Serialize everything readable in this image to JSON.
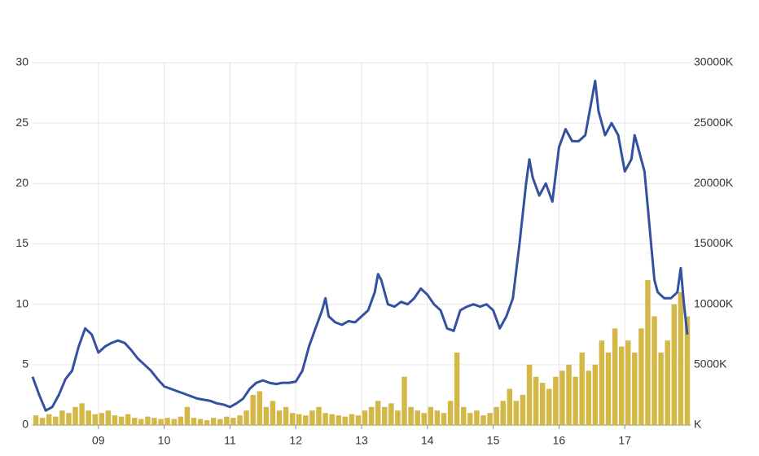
{
  "chart_data": {
    "type": "line",
    "xlim": [
      8,
      18
    ],
    "xticks": [
      {
        "value": 9,
        "label": "09"
      },
      {
        "value": 10,
        "label": "10"
      },
      {
        "value": 11,
        "label": "11"
      },
      {
        "value": 12,
        "label": "12"
      },
      {
        "value": 13,
        "label": "13"
      },
      {
        "value": 14,
        "label": "14"
      },
      {
        "value": 15,
        "label": "15"
      },
      {
        "value": 16,
        "label": "16"
      },
      {
        "value": 17,
        "label": "17"
      }
    ],
    "ylim": [
      0,
      30
    ],
    "yticks": [
      0,
      5,
      10,
      15,
      20,
      25,
      30
    ],
    "y2lim": [
      0,
      30000
    ],
    "y2ticks": [
      {
        "value": 0,
        "label": "K"
      },
      {
        "value": 5000,
        "label": "5000K"
      },
      {
        "value": 10000,
        "label": "10000K"
      },
      {
        "value": 15000,
        "label": "15000K"
      },
      {
        "value": 20000,
        "label": "20000K"
      },
      {
        "value": 25000,
        "label": "25000K"
      },
      {
        "value": 30000,
        "label": "30000K"
      }
    ],
    "grid": true,
    "series": [
      {
        "type": "bar",
        "axis": "y2",
        "color": "#d4b847",
        "x": [
          8.05,
          8.15,
          8.25,
          8.35,
          8.45,
          8.55,
          8.65,
          8.75,
          8.85,
          8.95,
          9.05,
          9.15,
          9.25,
          9.35,
          9.45,
          9.55,
          9.65,
          9.75,
          9.85,
          9.95,
          10.05,
          10.15,
          10.25,
          10.35,
          10.45,
          10.55,
          10.65,
          10.75,
          10.85,
          10.95,
          11.05,
          11.15,
          11.25,
          11.35,
          11.45,
          11.55,
          11.65,
          11.75,
          11.85,
          11.95,
          12.05,
          12.15,
          12.25,
          12.35,
          12.45,
          12.55,
          12.65,
          12.75,
          12.85,
          12.95,
          13.05,
          13.15,
          13.25,
          13.35,
          13.45,
          13.55,
          13.65,
          13.75,
          13.85,
          13.95,
          14.05,
          14.15,
          14.25,
          14.35,
          14.45,
          14.55,
          14.65,
          14.75,
          14.85,
          14.95,
          15.05,
          15.15,
          15.25,
          15.35,
          15.45,
          15.55,
          15.65,
          15.75,
          15.85,
          15.95,
          16.05,
          16.15,
          16.25,
          16.35,
          16.45,
          16.55,
          16.65,
          16.75,
          16.85,
          16.95,
          17.05,
          17.15,
          17.25,
          17.35,
          17.45,
          17.55,
          17.65,
          17.75,
          17.85,
          17.95
        ],
        "values": [
          800,
          600,
          900,
          700,
          1200,
          1000,
          1500,
          1800,
          1200,
          900,
          1000,
          1200,
          800,
          700,
          900,
          600,
          500,
          700,
          600,
          500,
          600,
          500,
          700,
          1500,
          600,
          500,
          400,
          600,
          500,
          700,
          600,
          800,
          1200,
          2500,
          2800,
          1500,
          2000,
          1200,
          1500,
          1000,
          900,
          800,
          1200,
          1500,
          1000,
          900,
          800,
          700,
          900,
          800,
          1200,
          1500,
          2000,
          1500,
          1800,
          1200,
          4000,
          1500,
          1200,
          1000,
          1500,
          1200,
          1000,
          2000,
          6000,
          1500,
          1000,
          1200,
          800,
          1000,
          1500,
          2000,
          3000,
          2000,
          2500,
          5000,
          4000,
          3500,
          3000,
          4000,
          4500,
          5000,
          4000,
          6000,
          4500,
          5000,
          7000,
          6000,
          8000,
          6500,
          7000,
          6000,
          8000,
          12000,
          9000,
          6000,
          7000,
          10000,
          11000,
          9000
        ]
      },
      {
        "type": "line",
        "color": "#3450a0",
        "x": [
          8.0,
          8.1,
          8.2,
          8.3,
          8.4,
          8.5,
          8.6,
          8.7,
          8.8,
          8.9,
          9.0,
          9.1,
          9.2,
          9.3,
          9.4,
          9.5,
          9.6,
          9.7,
          9.8,
          9.9,
          10.0,
          10.1,
          10.2,
          10.3,
          10.4,
          10.5,
          10.6,
          10.7,
          10.8,
          10.9,
          11.0,
          11.1,
          11.2,
          11.3,
          11.4,
          11.5,
          11.6,
          11.7,
          11.8,
          11.9,
          12.0,
          12.1,
          12.2,
          12.3,
          12.4,
          12.45,
          12.5,
          12.6,
          12.7,
          12.8,
          12.9,
          13.0,
          13.1,
          13.2,
          13.25,
          13.3,
          13.4,
          13.5,
          13.6,
          13.7,
          13.8,
          13.9,
          14.0,
          14.1,
          14.2,
          14.3,
          14.4,
          14.5,
          14.6,
          14.7,
          14.8,
          14.9,
          15.0,
          15.1,
          15.2,
          15.3,
          15.4,
          15.5,
          15.55,
          15.6,
          15.7,
          15.8,
          15.9,
          16.0,
          16.1,
          16.2,
          16.3,
          16.4,
          16.5,
          16.55,
          16.6,
          16.7,
          16.8,
          16.9,
          17.0,
          17.1,
          17.15,
          17.2,
          17.3,
          17.35,
          17.4,
          17.45,
          17.5,
          17.6,
          17.7,
          17.8,
          17.85,
          17.9,
          17.95
        ],
        "values": [
          4,
          2.5,
          1.2,
          1.5,
          2.5,
          3.8,
          4.5,
          6.5,
          8,
          7.5,
          6,
          6.5,
          6.8,
          7,
          6.8,
          6.2,
          5.5,
          5,
          4.5,
          3.8,
          3.2,
          3,
          2.8,
          2.6,
          2.4,
          2.2,
          2.1,
          2,
          1.8,
          1.7,
          1.5,
          1.8,
          2.2,
          3,
          3.5,
          3.7,
          3.5,
          3.4,
          3.5,
          3.5,
          3.6,
          4.5,
          6.5,
          8,
          9.5,
          10.5,
          9,
          8.5,
          8.3,
          8.6,
          8.5,
          9,
          9.5,
          11,
          12.5,
          12,
          10,
          9.8,
          10.2,
          10,
          10.5,
          11.3,
          10.8,
          10,
          9.5,
          8,
          7.8,
          9.5,
          9.8,
          10,
          9.8,
          10,
          9.5,
          8,
          9,
          10.5,
          15,
          20,
          22,
          20.5,
          19,
          20,
          18.5,
          23,
          24.5,
          23.5,
          23.5,
          24,
          27,
          28.5,
          26,
          24,
          25,
          24,
          21,
          22,
          24,
          23,
          21,
          18,
          15,
          12,
          11,
          10.5,
          10.5,
          11,
          13,
          10,
          7.5
        ]
      }
    ]
  }
}
